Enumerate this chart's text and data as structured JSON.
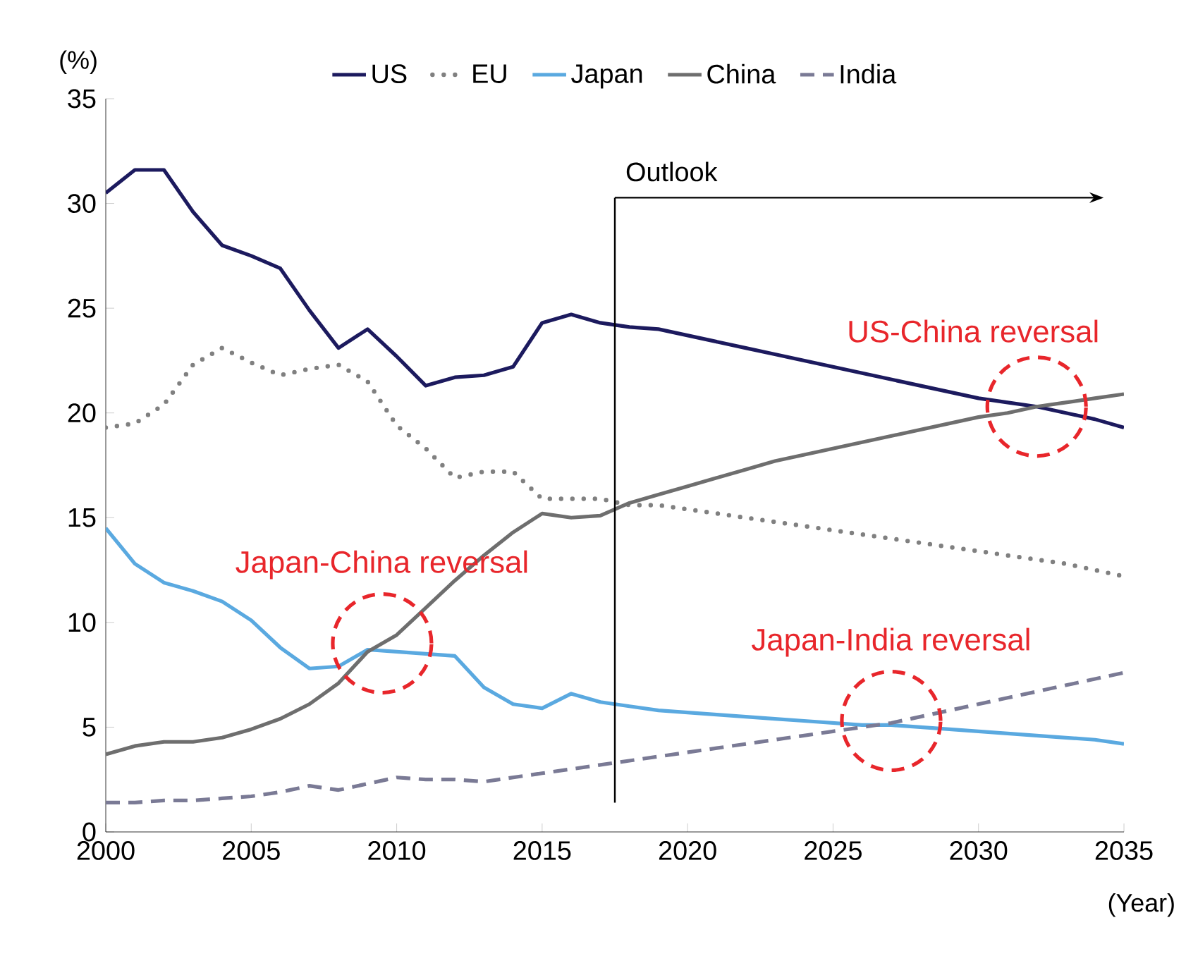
{
  "chart_data": {
    "type": "line",
    "xlabel": "(Year)",
    "ylabel": "(%)",
    "x": [
      2000,
      2001,
      2002,
      2003,
      2004,
      2005,
      2006,
      2007,
      2008,
      2009,
      2010,
      2011,
      2012,
      2013,
      2014,
      2015,
      2016,
      2017,
      2018,
      2019,
      2020,
      2021,
      2022,
      2023,
      2024,
      2025,
      2026,
      2027,
      2028,
      2029,
      2030,
      2031,
      2032,
      2033,
      2034,
      2035
    ],
    "series": [
      {
        "name": "US",
        "color": "#1c1a5e",
        "line_style": "solid",
        "values": [
          30.5,
          31.6,
          31.6,
          29.6,
          28.0,
          27.5,
          26.9,
          24.9,
          23.1,
          24.0,
          22.7,
          21.3,
          21.7,
          21.8,
          22.2,
          24.3,
          24.7,
          24.3,
          24.1,
          24.0,
          23.7,
          23.4,
          23.1,
          22.8,
          22.5,
          22.2,
          21.9,
          21.6,
          21.3,
          21.0,
          20.7,
          20.5,
          20.3,
          20.0,
          19.7,
          19.3
        ]
      },
      {
        "name": "EU",
        "color": "#808080",
        "line_style": "dotted",
        "values": [
          19.3,
          19.5,
          20.4,
          22.3,
          23.1,
          22.4,
          21.8,
          22.1,
          22.3,
          21.5,
          19.4,
          18.3,
          16.9,
          17.2,
          17.2,
          15.9,
          15.9,
          15.9,
          15.6,
          15.6,
          15.4,
          15.2,
          15.0,
          14.8,
          14.6,
          14.4,
          14.2,
          14.0,
          13.8,
          13.6,
          13.4,
          13.2,
          13.0,
          12.8,
          12.5,
          12.2
        ]
      },
      {
        "name": "Japan",
        "color": "#5aa9e0",
        "line_style": "solid",
        "values": [
          14.5,
          12.8,
          11.9,
          11.5,
          11.0,
          10.1,
          8.8,
          7.8,
          7.9,
          8.7,
          8.6,
          8.5,
          8.4,
          6.9,
          6.1,
          5.9,
          6.6,
          6.2,
          6.0,
          5.8,
          5.7,
          5.6,
          5.5,
          5.4,
          5.3,
          5.2,
          5.1,
          5.1,
          5.0,
          4.9,
          4.8,
          4.7,
          4.6,
          4.5,
          4.4,
          4.2
        ]
      },
      {
        "name": "China",
        "color": "#6e6e6e",
        "line_style": "solid",
        "values": [
          3.7,
          4.1,
          4.3,
          4.3,
          4.5,
          4.9,
          5.4,
          6.1,
          7.1,
          8.6,
          9.4,
          10.7,
          12.0,
          13.2,
          14.3,
          15.2,
          15.0,
          15.1,
          15.7,
          16.1,
          16.5,
          16.9,
          17.3,
          17.7,
          18.0,
          18.3,
          18.6,
          18.9,
          19.2,
          19.5,
          19.8,
          20.0,
          20.3,
          20.5,
          20.7,
          20.9
        ]
      },
      {
        "name": "India",
        "color": "#7a7a95",
        "line_style": "dashed",
        "values": [
          1.4,
          1.4,
          1.5,
          1.5,
          1.6,
          1.7,
          1.9,
          2.2,
          2.0,
          2.3,
          2.6,
          2.5,
          2.5,
          2.4,
          2.6,
          2.8,
          3.0,
          3.2,
          3.4,
          3.6,
          3.8,
          4.0,
          4.2,
          4.4,
          4.6,
          4.8,
          5.0,
          5.2,
          5.5,
          5.8,
          6.1,
          6.4,
          6.7,
          7.0,
          7.3,
          7.6
        ]
      }
    ],
    "xlim": [
      2000,
      2035
    ],
    "xticks": [
      2000,
      2005,
      2010,
      2015,
      2020,
      2025,
      2030,
      2035
    ],
    "ylim": [
      0,
      35
    ],
    "yticks": [
      0,
      5,
      10,
      15,
      20,
      25,
      30,
      35
    ],
    "ref_lines": [
      {
        "axis": "x",
        "value": 2017.5,
        "label": "Outlook",
        "color": "#000000"
      }
    ],
    "annotations": [
      {
        "text": "US-China reversal",
        "x": 2032,
        "y": 20.3
      },
      {
        "text": "Japan-China reversal",
        "x": 2009.5,
        "y": 9
      },
      {
        "text": "Japan-India reversal",
        "x": 2027,
        "y": 5.3
      }
    ],
    "grid": false,
    "legend": "top",
    "marker": "none"
  }
}
